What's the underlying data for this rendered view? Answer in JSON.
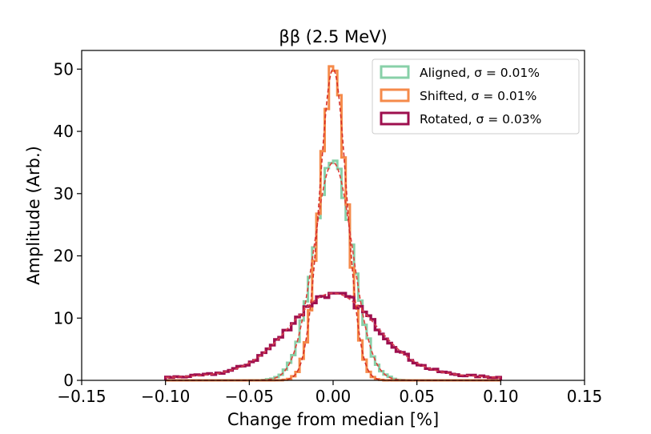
{
  "chart_data": {
    "type": "histogram",
    "title": "ββ (2.5 MeV)",
    "xlabel": "Change from median [%]",
    "ylabel": "Amplitude (Arb.)",
    "xlim": [
      -0.15,
      0.15
    ],
    "ylim": [
      0,
      53
    ],
    "xticks": [
      -0.15,
      -0.1,
      -0.05,
      0.0,
      0.05,
      0.1,
      0.15
    ],
    "xtick_labels": [
      "−0.15",
      "−0.10",
      "−0.05",
      "0.00",
      "0.05",
      "0.10",
      "0.15"
    ],
    "yticks": [
      0,
      10,
      20,
      30,
      40,
      50
    ],
    "ytick_labels": [
      "0",
      "10",
      "20",
      "30",
      "40",
      "50"
    ],
    "grid": false,
    "legend_position": "top-right",
    "bins": {
      "start": -0.1,
      "end": 0.1,
      "width": 0.0025
    },
    "series": [
      {
        "name": "Aligned, σ =  0.01%",
        "color": "#88d0a8",
        "fit_color": "#e0403a",
        "peak": 35,
        "sigma": 0.0115,
        "histogram_peak": 36
      },
      {
        "name": "Shifted, σ =  0.01%",
        "color": "#f58a4a",
        "fit_color": "#d73027",
        "peak": 50,
        "sigma": 0.008,
        "histogram_peak": 50.5
      },
      {
        "name": "Rotated, σ =  0.03%",
        "color": "#9e0f4e",
        "fit_color": "#d6404e",
        "peak_core": 12.5,
        "sigma_core": 0.025,
        "peak_wide": 1.5,
        "sigma_wide": 0.065,
        "histogram_peak": 14
      }
    ]
  }
}
